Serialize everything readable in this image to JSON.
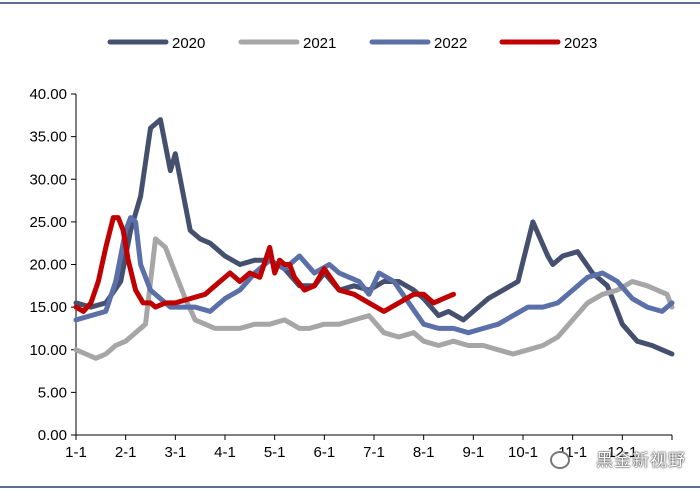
{
  "chart_data": {
    "type": "line",
    "title": "",
    "xlabel": "",
    "ylabel": "",
    "ylim": [
      0,
      40
    ],
    "xlim": [
      0,
      12
    ],
    "y_ticks": [
      "0.00",
      "5.00",
      "10.00",
      "15.00",
      "20.00",
      "25.00",
      "30.00",
      "35.00",
      "40.00"
    ],
    "x_ticks": [
      "1-1",
      "2-1",
      "3-1",
      "4-1",
      "5-1",
      "6-1",
      "7-1",
      "8-1",
      "9-1",
      "10-1",
      "11-1",
      "12-1"
    ],
    "legend_position": "top",
    "series": [
      {
        "name": "2020",
        "color": "#44506e",
        "x": [
          0,
          0.3,
          0.6,
          0.9,
          1.1,
          1.3,
          1.5,
          1.7,
          1.9,
          2.0,
          2.1,
          2.3,
          2.5,
          2.7,
          3.0,
          3.3,
          3.6,
          3.9,
          4.2,
          4.5,
          4.8,
          5.0,
          5.3,
          5.6,
          5.9,
          6.2,
          6.5,
          6.8,
          7.0,
          7.3,
          7.5,
          7.8,
          8.0,
          8.3,
          8.6,
          8.9,
          9.2,
          9.5,
          9.6,
          9.8,
          10.1,
          10.4,
          10.7,
          11.0,
          11.3,
          11.6,
          11.8,
          12.0
        ],
        "values": [
          15.5,
          15,
          15.5,
          18,
          24,
          28,
          36,
          37,
          31,
          33,
          30,
          24,
          23,
          22.5,
          21,
          20,
          20.5,
          20.5,
          19.5,
          17.5,
          17.5,
          19,
          17,
          17.5,
          17,
          18,
          18,
          17,
          16,
          14,
          14.5,
          13.5,
          14.5,
          16,
          17,
          18,
          25,
          21,
          20,
          21,
          21.5,
          19,
          17.5,
          13,
          11,
          10.5,
          10,
          9.5
        ]
      },
      {
        "name": "2021",
        "color": "#a6a6a6",
        "x": [
          0,
          0.2,
          0.4,
          0.6,
          0.8,
          1.0,
          1.2,
          1.4,
          1.5,
          1.6,
          1.8,
          2.0,
          2.2,
          2.4,
          2.6,
          2.8,
          3.0,
          3.3,
          3.6,
          3.9,
          4.2,
          4.5,
          4.7,
          5.0,
          5.3,
          5.6,
          5.9,
          6.2,
          6.5,
          6.8,
          7.0,
          7.3,
          7.6,
          7.9,
          8.2,
          8.5,
          8.8,
          9.1,
          9.4,
          9.7,
          10.0,
          10.3,
          10.6,
          10.9,
          11.2,
          11.5,
          11.7,
          11.9,
          12.0
        ],
        "values": [
          10,
          9.5,
          9,
          9.5,
          10.5,
          11,
          12,
          13,
          18,
          23,
          22,
          19,
          16,
          13.5,
          13,
          12.5,
          12.5,
          12.5,
          13,
          13,
          13.5,
          12.5,
          12.5,
          13,
          13,
          13.5,
          14,
          12,
          11.5,
          12,
          11,
          10.5,
          11,
          10.5,
          10.5,
          10,
          9.5,
          10,
          10.5,
          11.5,
          13.5,
          15.5,
          16.5,
          17,
          18,
          17.5,
          17,
          16.5,
          15
        ]
      },
      {
        "name": "2022",
        "color": "#5b6fa8",
        "x": [
          0,
          0.3,
          0.6,
          0.8,
          1.0,
          1.1,
          1.2,
          1.3,
          1.5,
          1.7,
          1.9,
          2.1,
          2.4,
          2.7,
          3.0,
          3.3,
          3.6,
          3.9,
          4.2,
          4.5,
          4.8,
          5.1,
          5.3,
          5.5,
          5.7,
          5.9,
          6.1,
          6.4,
          6.7,
          7.0,
          7.3,
          7.6,
          7.9,
          8.2,
          8.5,
          8.8,
          9.1,
          9.4,
          9.7,
          10.0,
          10.3,
          10.6,
          10.9,
          11.2,
          11.5,
          11.8,
          12.0
        ],
        "values": [
          13.5,
          14,
          14.5,
          18,
          24,
          25.5,
          25,
          20,
          17,
          16,
          15,
          15,
          15,
          14.5,
          16,
          17,
          19,
          20.5,
          19.5,
          21,
          19,
          20,
          19,
          18.5,
          18,
          16.5,
          19,
          18,
          15.5,
          13,
          12.5,
          12.5,
          12,
          12.5,
          13,
          14,
          15,
          15,
          15.5,
          17,
          18.5,
          19,
          18,
          16,
          15,
          14.5,
          15.5
        ]
      },
      {
        "name": "2023",
        "color": "#c00000",
        "x": [
          0,
          0.15,
          0.3,
          0.45,
          0.6,
          0.75,
          0.85,
          0.95,
          1.05,
          1.2,
          1.35,
          1.5,
          1.6,
          1.8,
          2.0,
          2.3,
          2.6,
          2.9,
          3.1,
          3.3,
          3.5,
          3.7,
          3.9,
          4.0,
          4.1,
          4.2,
          4.3,
          4.4,
          4.6,
          4.8,
          5.0,
          5.3,
          5.6,
          5.9,
          6.2,
          6.5,
          6.8,
          7.0,
          7.2,
          7.4,
          7.6
        ],
        "values": [
          15,
          14.5,
          15.5,
          18,
          22,
          25.5,
          25.5,
          24,
          20.5,
          17,
          15.5,
          15.5,
          15,
          15.5,
          15.5,
          16,
          16.5,
          18,
          19,
          18,
          19,
          18.5,
          22,
          19,
          20.5,
          20,
          20,
          18.5,
          17,
          17.5,
          19.5,
          17,
          16.5,
          15.5,
          14.5,
          15.5,
          16.5,
          16.5,
          15.5,
          16,
          16.5
        ]
      }
    ]
  },
  "watermark": "黑金新视野"
}
